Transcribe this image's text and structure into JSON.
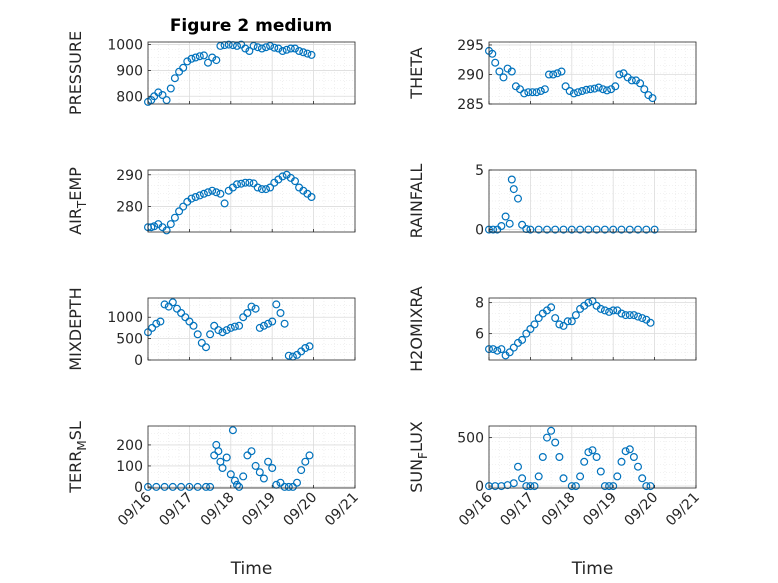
{
  "figure_title": "Figure 2 medium",
  "chart_data": [
    {
      "id": "pressure",
      "type": "scatter",
      "title": "Figure 2 medium",
      "ylabel": "PRESSURE",
      "xlabel": "",
      "yticks": [
        800,
        900,
        1000
      ],
      "ylim": [
        770,
        1010
      ],
      "xlim": [
        0,
        5
      ],
      "show_xticks": false,
      "x": [
        0,
        0.08,
        0.15,
        0.25,
        0.35,
        0.45,
        0.55,
        0.65,
        0.75,
        0.85,
        0.95,
        1.05,
        1.15,
        1.25,
        1.35,
        1.45,
        1.55,
        1.65,
        1.75,
        1.85,
        1.95,
        2.05,
        2.15,
        2.25,
        2.35,
        2.45,
        2.55,
        2.65,
        2.75,
        2.85,
        2.95,
        3.05,
        3.15,
        3.25,
        3.35,
        3.45,
        3.55,
        3.65,
        3.75,
        3.85,
        3.95
      ],
      "values": [
        778,
        785,
        800,
        815,
        805,
        785,
        830,
        870,
        895,
        910,
        935,
        945,
        950,
        955,
        958,
        930,
        950,
        940,
        995,
        998,
        1000,
        998,
        995,
        1000,
        985,
        975,
        995,
        990,
        985,
        990,
        995,
        988,
        985,
        975,
        980,
        985,
        985,
        975,
        970,
        965,
        960
      ]
    },
    {
      "id": "theta",
      "type": "scatter",
      "title": "",
      "ylabel": "THETA",
      "xlabel": "",
      "yticks": [
        285,
        290,
        295
      ],
      "ylim": [
        285,
        295.5
      ],
      "xlim": [
        0,
        5
      ],
      "show_xticks": false,
      "x": [
        0,
        0.08,
        0.15,
        0.25,
        0.35,
        0.45,
        0.55,
        0.65,
        0.75,
        0.85,
        0.95,
        1.05,
        1.15,
        1.25,
        1.35,
        1.45,
        1.55,
        1.65,
        1.75,
        1.85,
        1.95,
        2.05,
        2.15,
        2.25,
        2.35,
        2.45,
        2.55,
        2.65,
        2.75,
        2.85,
        2.95,
        3.05,
        3.15,
        3.25,
        3.35,
        3.45,
        3.55,
        3.65,
        3.75,
        3.85,
        3.95
      ],
      "values": [
        294,
        293.5,
        292,
        290.5,
        289.5,
        291,
        290.5,
        288,
        287.5,
        286.8,
        287,
        287,
        287,
        287.2,
        287.5,
        290,
        290,
        290.2,
        290.5,
        288,
        287.2,
        286.8,
        287,
        287.2,
        287.4,
        287.5,
        287.6,
        287.8,
        287.5,
        287.3,
        287.5,
        288,
        290,
        290.2,
        289.5,
        289,
        289,
        288.5,
        287.5,
        286.5,
        286
      ]
    },
    {
      "id": "air_temp",
      "type": "scatter",
      "title": "",
      "ylabel": "AIR_TEMP",
      "xlabel": "",
      "yticks": [
        280,
        290
      ],
      "ylim": [
        272,
        291.5
      ],
      "xlim": [
        0,
        5
      ],
      "show_xticks": false,
      "x": [
        0,
        0.08,
        0.15,
        0.25,
        0.35,
        0.45,
        0.55,
        0.65,
        0.75,
        0.85,
        0.95,
        1.05,
        1.15,
        1.25,
        1.35,
        1.45,
        1.55,
        1.65,
        1.75,
        1.85,
        1.95,
        2.05,
        2.15,
        2.25,
        2.35,
        2.45,
        2.55,
        2.65,
        2.75,
        2.85,
        2.95,
        3.05,
        3.15,
        3.25,
        3.35,
        3.45,
        3.55,
        3.65,
        3.75,
        3.85,
        3.95
      ],
      "values": [
        273.5,
        273.5,
        273.8,
        274.5,
        273.5,
        272.5,
        274.5,
        276.5,
        278.5,
        280,
        281.5,
        282.5,
        283,
        283.5,
        284,
        284.5,
        285,
        284.5,
        284,
        281,
        285,
        286,
        287,
        287.2,
        287.5,
        287.5,
        287.3,
        286,
        285.5,
        285.5,
        286,
        287.5,
        288.5,
        289.5,
        290,
        289,
        288,
        286,
        285,
        284,
        283
      ]
    },
    {
      "id": "rainfall",
      "type": "scatter",
      "title": "",
      "ylabel": "RAINFALL",
      "xlabel": "",
      "yticks": [
        0,
        5
      ],
      "ylim": [
        -0.2,
        5
      ],
      "xlim": [
        0,
        5
      ],
      "show_xticks": false,
      "x": [
        0,
        0.1,
        0.2,
        0.3,
        0.4,
        0.5,
        0.55,
        0.6,
        0.7,
        0.8,
        0.9,
        1.0,
        1.2,
        1.4,
        1.6,
        1.8,
        2.0,
        2.2,
        2.4,
        2.6,
        2.8,
        3.0,
        3.2,
        3.4,
        3.6,
        3.8,
        4.0
      ],
      "values": [
        0,
        0,
        0,
        0.3,
        1.1,
        0.5,
        4.2,
        3.4,
        2.6,
        0.4,
        0.05,
        0,
        0,
        0,
        0,
        0,
        0,
        0,
        0,
        0,
        0,
        0,
        0,
        0,
        0,
        0,
        0
      ]
    },
    {
      "id": "mixdepth",
      "type": "scatter",
      "title": "",
      "ylabel": "MIXDEPTH",
      "xlabel": "",
      "yticks": [
        0,
        500,
        1000
      ],
      "ylim": [
        0,
        1450
      ],
      "xlim": [
        0,
        5
      ],
      "show_xticks": false,
      "x": [
        0,
        0.1,
        0.2,
        0.3,
        0.4,
        0.5,
        0.6,
        0.7,
        0.8,
        0.9,
        1.0,
        1.1,
        1.2,
        1.3,
        1.4,
        1.5,
        1.6,
        1.7,
        1.8,
        1.9,
        2.0,
        2.1,
        2.2,
        2.3,
        2.4,
        2.5,
        2.6,
        2.7,
        2.8,
        2.9,
        3.0,
        3.1,
        3.2,
        3.3,
        3.4,
        3.5,
        3.6,
        3.7,
        3.8,
        3.9
      ],
      "values": [
        650,
        750,
        850,
        900,
        1300,
        1250,
        1350,
        1200,
        1100,
        1000,
        900,
        800,
        600,
        400,
        300,
        600,
        800,
        700,
        650,
        700,
        750,
        780,
        800,
        1000,
        1100,
        1250,
        1200,
        750,
        800,
        850,
        900,
        1300,
        1100,
        850,
        100,
        80,
        120,
        200,
        280,
        320
      ]
    },
    {
      "id": "h2omixra",
      "type": "scatter",
      "title": "",
      "ylabel": "H2OMIXRA",
      "xlabel": "",
      "yticks": [
        6,
        8
      ],
      "ylim": [
        4.3,
        8.3
      ],
      "xlim": [
        0,
        5
      ],
      "show_xticks": false,
      "x": [
        0,
        0.1,
        0.2,
        0.3,
        0.4,
        0.5,
        0.6,
        0.7,
        0.8,
        0.9,
        1.0,
        1.1,
        1.2,
        1.3,
        1.4,
        1.5,
        1.6,
        1.7,
        1.8,
        1.9,
        2.0,
        2.1,
        2.2,
        2.3,
        2.4,
        2.5,
        2.6,
        2.7,
        2.8,
        2.9,
        3.0,
        3.1,
        3.2,
        3.3,
        3.4,
        3.5,
        3.6,
        3.7,
        3.8,
        3.9
      ],
      "values": [
        5.0,
        5.0,
        4.9,
        5.0,
        4.6,
        4.8,
        5.1,
        5.4,
        5.6,
        6.0,
        6.3,
        6.6,
        7.0,
        7.3,
        7.5,
        7.7,
        7.0,
        6.6,
        6.5,
        6.8,
        6.8,
        7.2,
        7.6,
        7.8,
        8.0,
        8.1,
        7.8,
        7.6,
        7.5,
        7.4,
        7.5,
        7.5,
        7.3,
        7.2,
        7.2,
        7.2,
        7.1,
        7.0,
        6.9,
        6.7
      ]
    },
    {
      "id": "terr_msl",
      "type": "scatter",
      "title": "",
      "ylabel": "TERR_MSL",
      "xlabel": "Time",
      "yticks": [
        0,
        100,
        200
      ],
      "ylim": [
        -5,
        290
      ],
      "xlim": [
        0,
        5
      ],
      "show_xticks": true,
      "x": [
        0,
        0.2,
        0.4,
        0.6,
        0.8,
        1.0,
        1.2,
        1.4,
        1.5,
        1.6,
        1.65,
        1.7,
        1.75,
        1.8,
        1.9,
        2.0,
        2.05,
        2.1,
        2.15,
        2.2,
        2.3,
        2.4,
        2.5,
        2.6,
        2.7,
        2.8,
        2.9,
        3.0,
        3.1,
        3.2,
        3.3,
        3.4,
        3.5,
        3.6,
        3.7,
        3.8,
        3.9
      ],
      "values": [
        0,
        0,
        0,
        0,
        0,
        0,
        0,
        0,
        0,
        150,
        200,
        170,
        120,
        90,
        140,
        60,
        270,
        30,
        10,
        0,
        50,
        150,
        170,
        100,
        70,
        40,
        120,
        90,
        10,
        20,
        0,
        0,
        0,
        20,
        80,
        120,
        150
      ]
    },
    {
      "id": "sun_flux",
      "type": "scatter",
      "title": "",
      "ylabel": "SUN_FLUX",
      "xlabel": "Time",
      "yticks": [
        0,
        500
      ],
      "ylim": [
        -20,
        620
      ],
      "xlim": [
        0,
        5
      ],
      "show_xticks": true,
      "x": [
        0,
        0.15,
        0.3,
        0.45,
        0.6,
        0.7,
        0.8,
        0.9,
        1.0,
        1.1,
        1.2,
        1.3,
        1.4,
        1.5,
        1.6,
        1.7,
        1.8,
        2.0,
        2.1,
        2.2,
        2.3,
        2.4,
        2.5,
        2.6,
        2.7,
        2.8,
        2.9,
        3.0,
        3.1,
        3.2,
        3.3,
        3.4,
        3.5,
        3.6,
        3.7,
        3.8,
        3.9
      ],
      "values": [
        0,
        0,
        0,
        10,
        30,
        200,
        80,
        0,
        0,
        0,
        100,
        300,
        500,
        570,
        450,
        300,
        80,
        0,
        0,
        100,
        250,
        350,
        370,
        300,
        150,
        0,
        0,
        0,
        100,
        250,
        360,
        380,
        300,
        200,
        80,
        0,
        0
      ]
    }
  ],
  "x_tick_labels": [
    "09/16",
    "09/17",
    "09/18",
    "09/19",
    "09/20",
    "09/21"
  ],
  "marker_color": "#0072bd",
  "axis_color": "#262626",
  "grid_color": "#dcdcdc"
}
